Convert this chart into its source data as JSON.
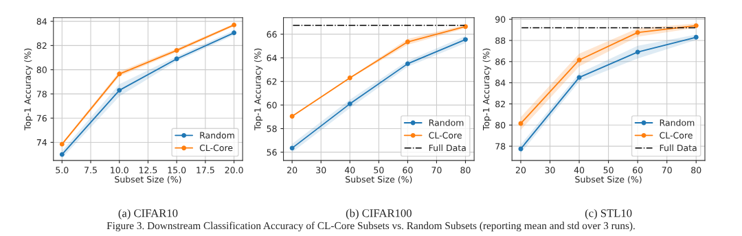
{
  "chart_data": [
    {
      "type": "line",
      "title": "(a) CIFAR10",
      "xlabel": "Subset Size (%)",
      "ylabel": "Top-1 Accuracy (%)",
      "x": [
        5,
        10,
        15,
        20
      ],
      "series": [
        {
          "name": "Random",
          "color": "#1f77b4",
          "values": [
            73.0,
            78.3,
            80.9,
            83.05
          ],
          "lower": [
            72.7,
            77.8,
            80.7,
            82.85
          ],
          "upper": [
            73.3,
            78.8,
            81.1,
            83.25
          ]
        },
        {
          "name": "CL-Core",
          "color": "#ff7f0e",
          "values": [
            73.85,
            79.65,
            81.6,
            83.7
          ],
          "lower": [
            73.75,
            79.45,
            81.45,
            83.6
          ],
          "upper": [
            73.95,
            79.85,
            81.75,
            83.8
          ]
        }
      ],
      "xlim": [
        4.25,
        20.75
      ],
      "xticks": [
        {
          "value": 5,
          "label": "5.0"
        },
        {
          "value": 7.5,
          "label": "7.5"
        },
        {
          "value": 10,
          "label": "10.0"
        },
        {
          "value": 12.5,
          "label": "12.5"
        },
        {
          "value": 15,
          "label": "15.0"
        },
        {
          "value": 17.5,
          "label": "17.5"
        },
        {
          "value": 20,
          "label": "20.0"
        }
      ],
      "ylim": [
        72.5,
        84.3
      ],
      "yticks": [
        74,
        76,
        78,
        80,
        82,
        84
      ],
      "grid": true,
      "legend": "bottom right",
      "marker": "circle",
      "line_style": "solid",
      "annotations": [
        "Figure 3. Downstream Classification Accuracy of CL-Core Subsets vs. Random Subsets (reporting mean and std over 3 runs)."
      ]
    },
    {
      "type": "line",
      "title": "(b) CIFAR100",
      "xlabel": "Subset Size (%)",
      "ylabel": "Top-1 Accuracy (%)",
      "x": [
        20,
        40,
        60,
        80
      ],
      "series": [
        {
          "name": "Random",
          "color": "#1f77b4",
          "values": [
            56.35,
            60.1,
            63.5,
            65.55
          ],
          "lower": [
            56.0,
            59.75,
            63.25,
            65.25
          ],
          "upper": [
            56.7,
            60.45,
            63.75,
            65.85
          ]
        },
        {
          "name": "CL-Core",
          "color": "#ff7f0e",
          "values": [
            59.05,
            62.3,
            65.35,
            66.65
          ],
          "lower": [
            59.0,
            62.25,
            65.1,
            66.5
          ],
          "upper": [
            59.1,
            62.35,
            65.6,
            66.8
          ]
        }
      ],
      "ref_lines": [
        {
          "axis": "y",
          "value": 66.75,
          "label": "Full Data",
          "color": "#000000",
          "line_style": "dashdot"
        }
      ],
      "xlim": [
        17,
        83
      ],
      "xticks": [
        20,
        30,
        40,
        50,
        60,
        70,
        80
      ],
      "ylim": [
        55.3,
        67.4
      ],
      "yticks": [
        56,
        58,
        60,
        62,
        64,
        66
      ],
      "grid": true,
      "legend": "bottom right",
      "marker": "circle",
      "line_style": "solid"
    },
    {
      "type": "line",
      "title": "(c) STL10",
      "xlabel": "Subset Size (%)",
      "ylabel": "Top-1 Accuracy (%)",
      "x": [
        20,
        40,
        60,
        80
      ],
      "series": [
        {
          "name": "Random",
          "color": "#1f77b4",
          "values": [
            77.75,
            84.5,
            86.9,
            88.3
          ],
          "lower": [
            77.35,
            84.1,
            86.3,
            88.05
          ],
          "upper": [
            78.15,
            84.9,
            87.5,
            88.55
          ]
        },
        {
          "name": "CL-Core",
          "color": "#ff7f0e",
          "values": [
            80.15,
            86.15,
            88.75,
            89.4
          ],
          "lower": [
            79.55,
            85.55,
            88.35,
            89.2
          ],
          "upper": [
            80.75,
            86.75,
            89.15,
            89.6
          ]
        }
      ],
      "ref_lines": [
        {
          "axis": "y",
          "value": 89.2,
          "label": "Full Data",
          "color": "#000000",
          "line_style": "dashdot"
        }
      ],
      "xlim": [
        17,
        83
      ],
      "xticks": [
        20,
        30,
        40,
        50,
        60,
        70,
        80
      ],
      "ylim": [
        76.65,
        90.15
      ],
      "yticks": [
        78,
        80,
        82,
        84,
        86,
        88,
        90
      ],
      "grid": true,
      "legend": "bottom right",
      "marker": "circle",
      "line_style": "solid"
    }
  ]
}
